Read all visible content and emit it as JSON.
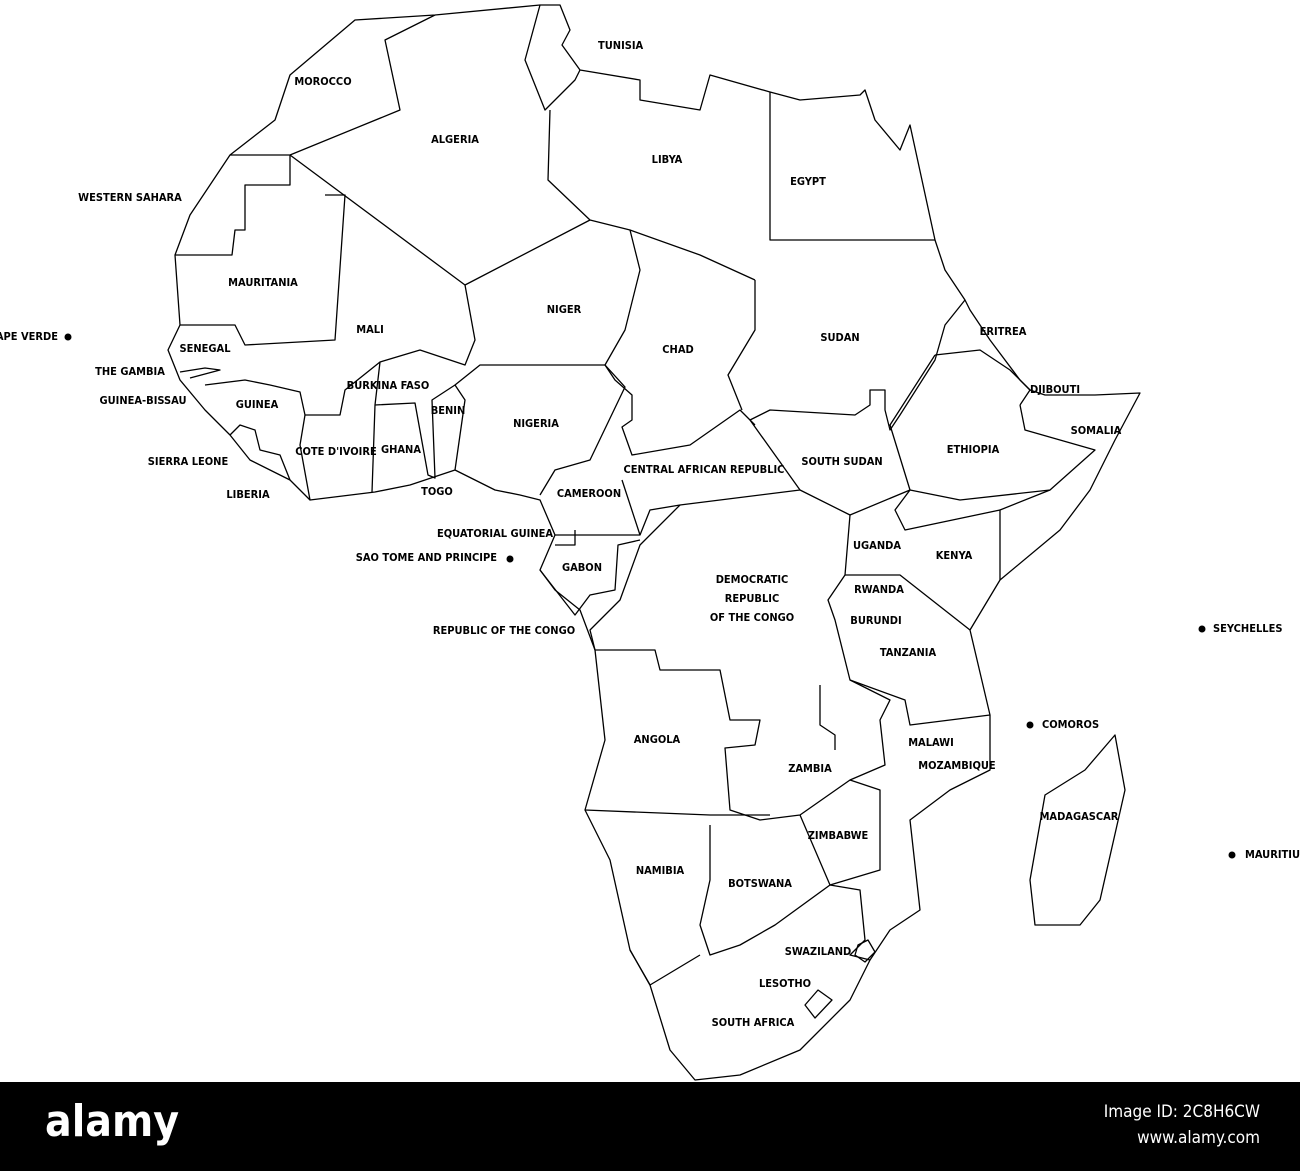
{
  "map": {
    "countries": [
      "TUNISIA",
      "MOROCCO",
      "ALGERIA",
      "LIBYA",
      "EGYPT",
      "WESTERN SAHARA",
      "MAURITANIA",
      "MALI",
      "NIGER",
      "CHAD",
      "SUDAN",
      "ERITREA",
      "SENEGAL",
      "THE GAMBIA",
      "BURKINA FASO",
      "DJIBOUTI",
      "GUINEA-BISSAU",
      "GUINEA",
      "BENIN",
      "NIGERIA",
      "SOMALIA",
      "ETHIOPIA",
      "SIERRA LEONE",
      "COTE D'IVOIRE",
      "GHANA",
      "SOUTH SUDAN",
      "CENTRAL AFRICAN REPUBLIC",
      "TOGO",
      "LIBERIA",
      "CAMEROON",
      "EQUATORIAL GUINEA",
      "UGANDA",
      "KENYA",
      "GABON",
      [
        "DEMOCRATIC",
        "REPUBLIC",
        "OF THE CONGO"
      ],
      "RWANDA",
      "BURUNDI",
      "REPUBLIC OF THE CONGO",
      "TANZANIA",
      "ANGOLA",
      "MALAWI",
      "MOZAMBIQUE",
      "ZAMBIA",
      "MADAGASCAR",
      "ZIMBABWE",
      "NAMIBIA",
      "BOTSWANA",
      "SWAZILAND",
      "LESOTHO",
      "SOUTH AFRICA"
    ],
    "islands": [
      "CAPE VERDE",
      "SAO TOME AND PRINCIPE",
      "SEYCHELLES",
      "COMOROS",
      "MAURITIUS"
    ]
  },
  "watermark": {
    "logo": "alamy",
    "image_id": "Image ID: 2C8H6CW",
    "url": "www.alamy.com"
  }
}
